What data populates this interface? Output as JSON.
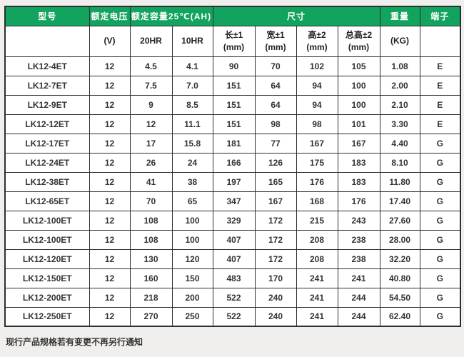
{
  "colors": {
    "header_green": "#12a35f",
    "border": "#2e2e2e",
    "text": "#333333",
    "page_background": "#f0efed"
  },
  "table": {
    "header_row1": [
      {
        "label": "型号",
        "colspan": 1
      },
      {
        "label": "额定电压",
        "colspan": 1
      },
      {
        "label": "额定容量25℃(AH)",
        "colspan": 2
      },
      {
        "label": "尺寸",
        "colspan": 4
      },
      {
        "label": "重量",
        "colspan": 1
      },
      {
        "label": "端子",
        "colspan": 1
      }
    ],
    "header_row2": [
      "",
      "(V)",
      "20HR",
      "10HR",
      "长±1\n(mm)",
      "宽±1\n(mm)",
      "高±2\n(mm)",
      "总高±2\n(mm)",
      "(KG)",
      ""
    ],
    "rows": [
      [
        "LK12-4ET",
        "12",
        "4.5",
        "4.1",
        "90",
        "70",
        "102",
        "105",
        "1.08",
        "E"
      ],
      [
        "LK12-7ET",
        "12",
        "7.5",
        "7.0",
        "151",
        "64",
        "94",
        "100",
        "2.00",
        "E"
      ],
      [
        "LK12-9ET",
        "12",
        "9",
        "8.5",
        "151",
        "64",
        "94",
        "100",
        "2.10",
        "E"
      ],
      [
        "LK12-12ET",
        "12",
        "12",
        "11.1",
        "151",
        "98",
        "98",
        "101",
        "3.30",
        "E"
      ],
      [
        "LK12-17ET",
        "12",
        "17",
        "15.8",
        "181",
        "77",
        "167",
        "167",
        "4.40",
        "G"
      ],
      [
        "LK12-24ET",
        "12",
        "26",
        "24",
        "166",
        "126",
        "175",
        "183",
        "8.10",
        "G"
      ],
      [
        "LK12-38ET",
        "12",
        "41",
        "38",
        "197",
        "165",
        "176",
        "183",
        "11.80",
        "G"
      ],
      [
        "LK12-65ET",
        "12",
        "70",
        "65",
        "347",
        "167",
        "168",
        "176",
        "17.40",
        "G"
      ],
      [
        "LK12-100ET",
        "12",
        "108",
        "100",
        "329",
        "172",
        "215",
        "243",
        "27.60",
        "G"
      ],
      [
        "LK12-100ET",
        "12",
        "108",
        "100",
        "407",
        "172",
        "208",
        "238",
        "28.00",
        "G"
      ],
      [
        "LK12-120ET",
        "12",
        "130",
        "120",
        "407",
        "172",
        "208",
        "238",
        "32.20",
        "G"
      ],
      [
        "LK12-150ET",
        "12",
        "160",
        "150",
        "483",
        "170",
        "241",
        "241",
        "40.80",
        "G"
      ],
      [
        "LK12-200ET",
        "12",
        "218",
        "200",
        "522",
        "240",
        "241",
        "244",
        "54.50",
        "G"
      ],
      [
        "LK12-250ET",
        "12",
        "270",
        "250",
        "522",
        "240",
        "241",
        "244",
        "62.40",
        "G"
      ]
    ]
  },
  "footer_note": "现行产品规格若有变更不再另行通知"
}
